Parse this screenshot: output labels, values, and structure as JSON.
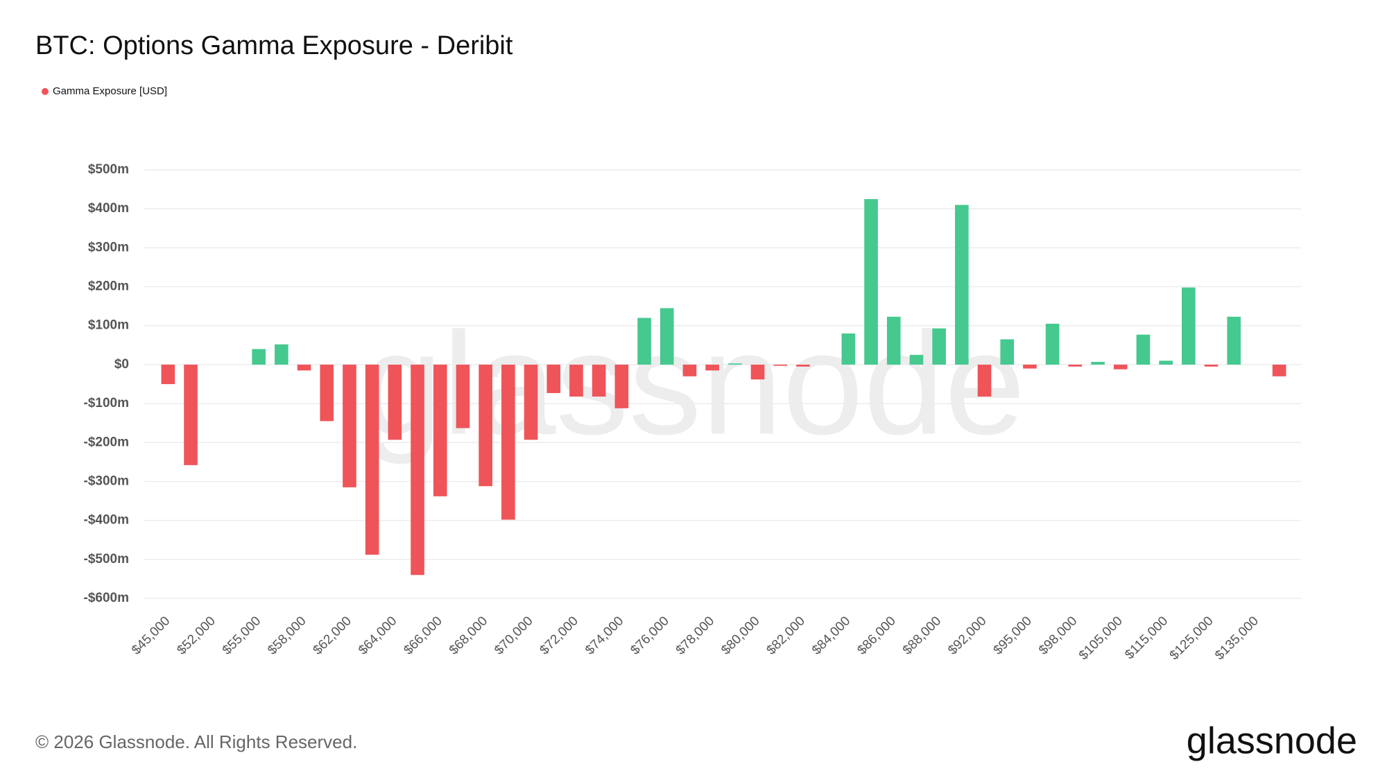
{
  "chart_data": {
    "type": "bar",
    "title": "BTC: Options Gamma Exposure - Deribit",
    "legend": "Gamma Exposure [USD]",
    "watermark": "glassnode",
    "footer": "© 2026 Glassnode. All Rights Reserved.",
    "logo": "glassnode",
    "categories": [
      "$45,000",
      null,
      "$52,000",
      null,
      "$55,000",
      null,
      "$58,000",
      null,
      "$62,000",
      null,
      "$64,000",
      null,
      "$66,000",
      null,
      "$68,000",
      null,
      "$70,000",
      null,
      "$72,000",
      null,
      "$74,000",
      null,
      "$76,000",
      null,
      "$78,000",
      null,
      "$80,000",
      null,
      "$82,000",
      null,
      "$84,000",
      null,
      "$86,000",
      null,
      "$88,000",
      null,
      "$92,000",
      null,
      "$95,000",
      null,
      "$98,000",
      null,
      "$105,000",
      null,
      "$115,000",
      null,
      "$125,000",
      null,
      "$135,000",
      null
    ],
    "values": [
      -50,
      -258,
      0,
      0,
      40,
      52,
      -15,
      -145,
      -315,
      -488,
      -193,
      -540,
      -338,
      -163,
      -312,
      -398,
      -193,
      -73,
      -82,
      -82,
      -112,
      120,
      145,
      -30,
      -15,
      3,
      -38,
      -3,
      -5,
      0,
      80,
      425,
      123,
      25,
      93,
      410,
      -82,
      65,
      -10,
      105,
      -5,
      7,
      -12,
      77,
      10,
      198,
      -5,
      123,
      0,
      -30
    ],
    "color": "#ef5459",
    "positive_color": "#45c98f",
    "ylim": [
      -600,
      500
    ],
    "yticks": [
      {
        "value": -600,
        "label": "-$600m"
      },
      {
        "value": -500,
        "label": "-$500m"
      },
      {
        "value": -400,
        "label": "-$400m"
      },
      {
        "value": -300,
        "label": "-$300m"
      },
      {
        "value": -200,
        "label": "-$200m"
      },
      {
        "value": -100,
        "label": "-$100m"
      },
      {
        "value": 0,
        "label": "$0"
      },
      {
        "value": 100,
        "label": "$100m"
      },
      {
        "value": 200,
        "label": "$200m"
      },
      {
        "value": 300,
        "label": "$300m"
      },
      {
        "value": 400,
        "label": "$400m"
      },
      {
        "value": 500,
        "label": "$500m"
      }
    ],
    "grid": true
  }
}
